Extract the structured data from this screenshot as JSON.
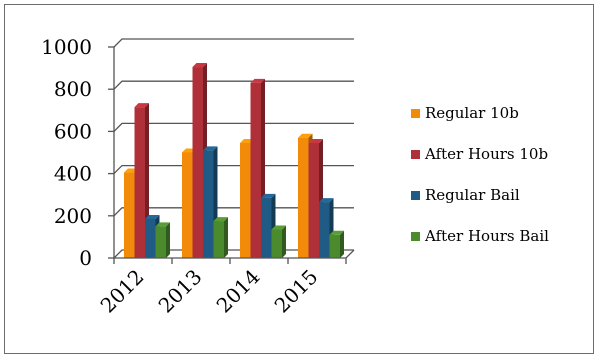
{
  "chart_data": {
    "type": "bar",
    "categories": [
      "2012",
      "2013",
      "2014",
      "2015"
    ],
    "series": [
      {
        "name": "Regular 10b",
        "color": "#F28A0A",
        "values": [
          405,
          500,
          545,
          570
        ]
      },
      {
        "name": "After Hours 10b",
        "color": "#B0303A",
        "values": [
          715,
          905,
          830,
          545
        ]
      },
      {
        "name": "Regular Bail",
        "color": "#1F5B85",
        "values": [
          185,
          510,
          285,
          265
        ]
      },
      {
        "name": "After Hours Bail",
        "color": "#4C8A2E",
        "values": [
          150,
          175,
          135,
          110
        ]
      }
    ],
    "yticks": [
      "0",
      "200",
      "400",
      "600",
      "800",
      "1000"
    ],
    "ylim": [
      0,
      1000
    ],
    "title": "",
    "xlabel": "",
    "ylabel": "",
    "grid": true,
    "legend": "right"
  }
}
